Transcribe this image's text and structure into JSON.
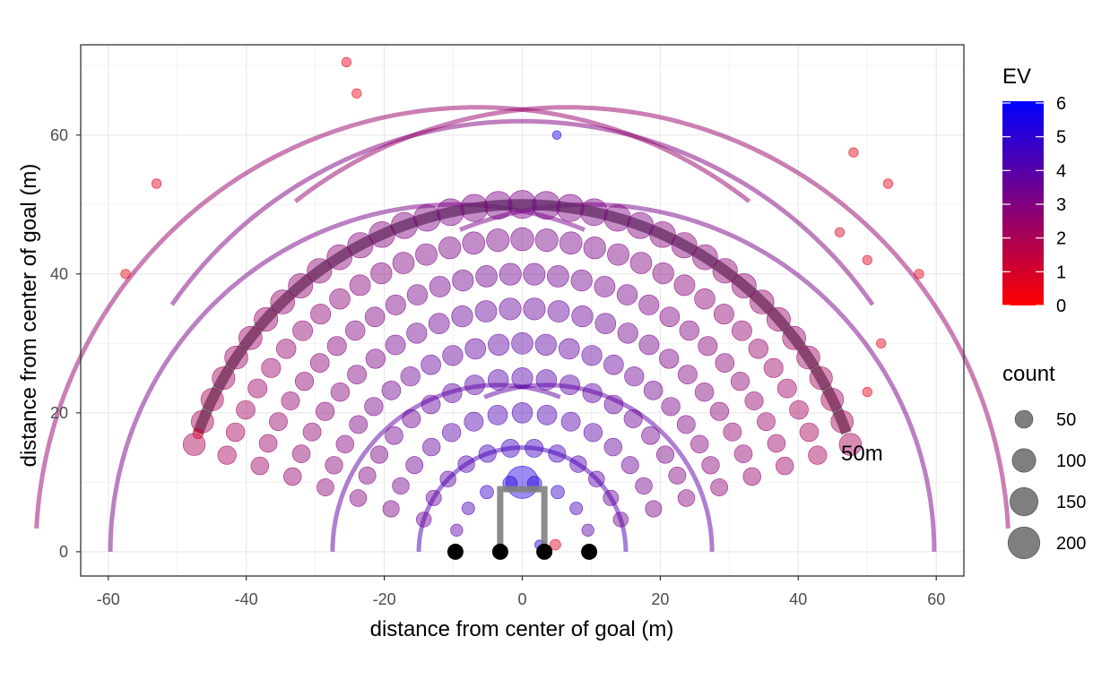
{
  "chart_data": {
    "type": "scatter",
    "xlabel": "distance from center of goal (m)",
    "ylabel": "distance from center of goal (m)",
    "xlim": [
      -64,
      64
    ],
    "ylim": [
      -3.5,
      73
    ],
    "x_ticks": [
      -60,
      -40,
      -20,
      0,
      20,
      40,
      60
    ],
    "y_ticks": [
      0,
      20,
      40,
      60
    ],
    "grid": true,
    "legend_position": "right",
    "color_legend": {
      "title": "EV",
      "min": 0,
      "max": 6,
      "ticks": [
        6,
        5,
        4,
        3,
        2,
        1,
        0
      ],
      "low_color": "#ff0000",
      "high_color": "#0000ff"
    },
    "size_legend": {
      "title": "count",
      "values": [
        50,
        100,
        150,
        200
      ]
    },
    "annotation": "50m",
    "goal_posts_x": [
      -9.7,
      -3.2,
      3.2,
      9.7
    ],
    "goal_frame": {
      "x": [
        -3.2,
        3.2
      ],
      "crossbar_y": 9,
      "color": "#808080"
    },
    "arcs": [
      {
        "note": "inner",
        "radius": 15,
        "center_x": 0,
        "ev": 4.3
      },
      {
        "note": "mid",
        "radius": 24,
        "center_x": -3.5,
        "ev": 3.8,
        "side": "left"
      },
      {
        "note": "mid",
        "radius": 24,
        "center_x": 3.5,
        "ev": 3.8,
        "side": "right"
      },
      {
        "note": "outer",
        "radius": 50,
        "center_x": -9.7,
        "ev": 3.2,
        "side": "left"
      },
      {
        "note": "outer",
        "radius": 50,
        "center_x": 9.7,
        "ev": 3.2,
        "side": "right"
      },
      {
        "note": "top",
        "radius": 62,
        "center_x": 0,
        "ev": 3.0
      },
      {
        "note": "wide",
        "radius": 64,
        "center_x": -6.5,
        "ev": 2.5,
        "side": "left"
      },
      {
        "note": "wide",
        "radius": 64,
        "center_x": 6.5,
        "ev": 2.5,
        "side": "right"
      }
    ],
    "highlight_arc": {
      "radius": 50,
      "color": "#4d4d4d",
      "label": "50m"
    },
    "rings": [
      {
        "distance": 10,
        "ev": 5.0,
        "count": 30
      },
      {
        "distance": 15,
        "ev": 4.5,
        "count": 55
      },
      {
        "distance": 20,
        "ev": 4.2,
        "count": 70
      },
      {
        "distance": 25,
        "ev": 4.0,
        "count": 75
      },
      {
        "distance": 30,
        "ev": 3.8,
        "count": 80
      },
      {
        "distance": 35,
        "ev": 3.6,
        "count": 85
      },
      {
        "distance": 40,
        "ev": 3.4,
        "count": 85
      },
      {
        "distance": 45,
        "ev": 3.2,
        "count": 95
      },
      {
        "distance": 50,
        "ev": 3.1,
        "count": 150
      }
    ],
    "points_extra": [
      {
        "x": 0,
        "y": 10,
        "ev": 5.3,
        "count": 210
      },
      {
        "x": -25.5,
        "y": 70.5,
        "ev": 0.6,
        "count": 8
      },
      {
        "x": -24,
        "y": 66,
        "ev": 0.5,
        "count": 8
      },
      {
        "x": -57.5,
        "y": 40,
        "ev": 0.5,
        "count": 8
      },
      {
        "x": -53,
        "y": 53,
        "ev": 0.6,
        "count": 8
      },
      {
        "x": 57.5,
        "y": 40,
        "ev": 0.5,
        "count": 8
      },
      {
        "x": 53,
        "y": 53,
        "ev": 0.6,
        "count": 8
      },
      {
        "x": 48,
        "y": 57.5,
        "ev": 0.5,
        "count": 8
      },
      {
        "x": 52,
        "y": 30,
        "ev": 0.6,
        "count": 8
      },
      {
        "x": 50,
        "y": 23,
        "ev": 0.5,
        "count": 8
      },
      {
        "x": 50,
        "y": 42,
        "ev": 0.8,
        "count": 8
      },
      {
        "x": 46,
        "y": 46,
        "ev": 0.9,
        "count": 8
      },
      {
        "x": 5,
        "y": 60,
        "ev": 5.6,
        "count": 6
      },
      {
        "x": -47,
        "y": 17,
        "ev": 0.9,
        "count": 10
      },
      {
        "x": 4.8,
        "y": 1,
        "ev": 0.7,
        "count": 12
      },
      {
        "x": 2.5,
        "y": 1,
        "ev": 5.0,
        "count": 8
      }
    ]
  }
}
